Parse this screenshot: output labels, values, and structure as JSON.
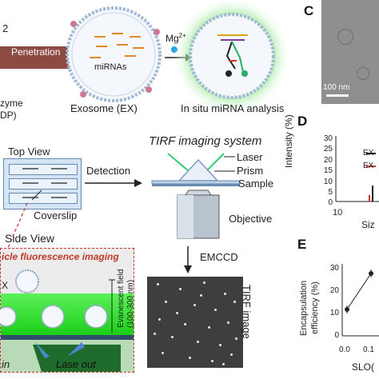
{
  "top": {
    "fragment_2": "2",
    "penetration": "Penetration",
    "mirnas": "miRNAs",
    "mg_label": "Mg",
    "mg_sup": "2+",
    "zyme": "zyme",
    "dp": "DP)",
    "exosome": "Exosome (EX)",
    "in_situ": "In situ miRNA analysis"
  },
  "panel_c": {
    "letter": "C",
    "scalebar": "100 nm"
  },
  "tirf": {
    "top_view": "Top View",
    "detection": "Detection",
    "system_title": "TIRF imaging system",
    "laser": "Laser",
    "prism": "Prism",
    "sample": "Sample",
    "coverslip": "Coverslip",
    "objective": "Objective",
    "side_view": "Side View",
    "emccd": "EMCCD",
    "tirf_image": "TIRF image",
    "side_banner": "icle fluorescence imaging",
    "x_label": "X",
    "evanescent_1": "Evanescent field",
    "evanescent_2": "(100-300 nm)",
    "in_label": "in",
    "lase_out": "Lase out"
  },
  "panel_d": {
    "letter": "D",
    "ylabel": "Intensity (%)",
    "yticks": [
      "30",
      "25",
      "20",
      "15",
      "10",
      "5",
      "0"
    ],
    "xtick": "10",
    "xlabel_fragment": "Siz",
    "legend": [
      "EX",
      "EX"
    ],
    "legend_colors": [
      "#111111",
      "#c0392b"
    ]
  },
  "panel_e": {
    "letter": "E",
    "ylabel_1": "Encapsulation",
    "ylabel_2": "efficiency (%)",
    "yticks": [
      "30",
      "20",
      "10",
      "0"
    ],
    "xticks": [
      "0.0",
      "0.1"
    ],
    "xlabel_fragment": "SLO("
  },
  "chart_data": {
    "type": "line",
    "xlabel": "SLO(",
    "ylabel": "Encapsulation efficiency (%)",
    "ylim": [
      0,
      30
    ],
    "x": [
      0.0,
      0.1
    ],
    "series": [
      {
        "values": [
          11,
          26
        ]
      }
    ]
  }
}
